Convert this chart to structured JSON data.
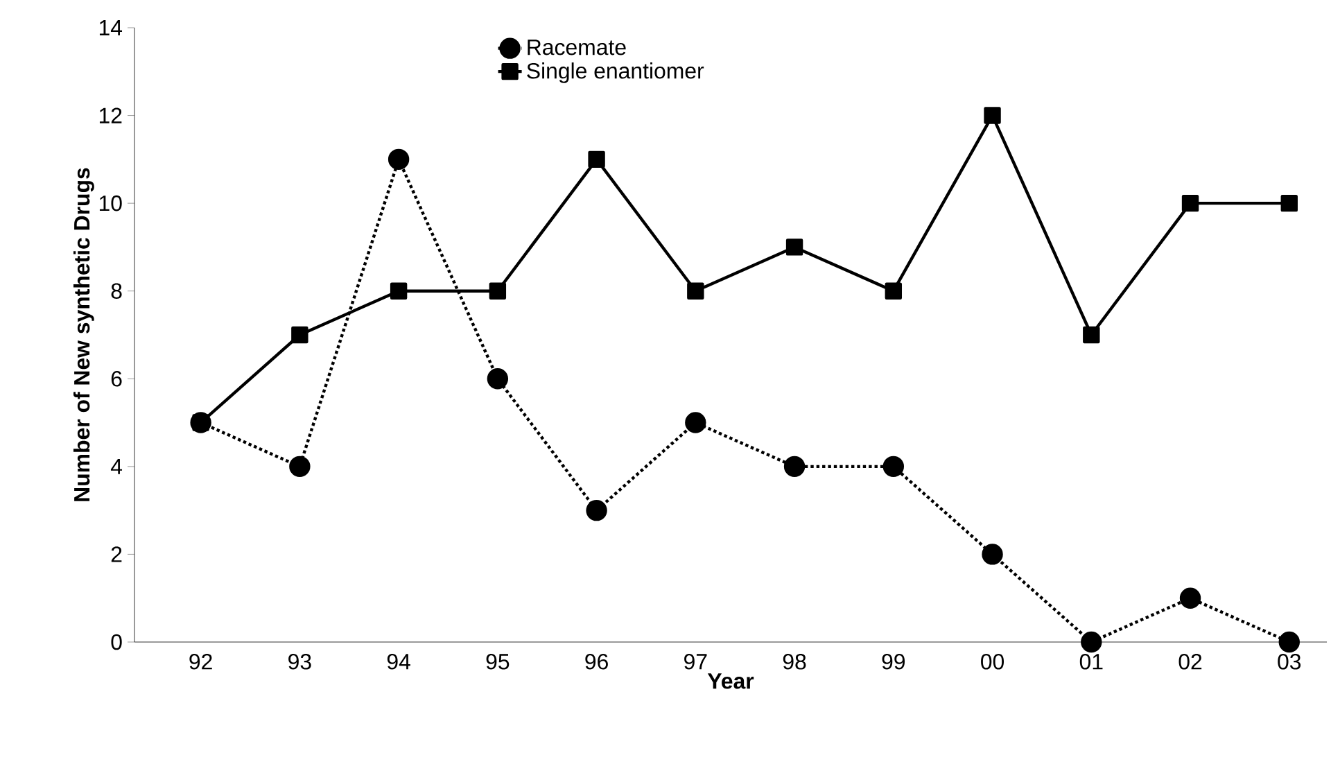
{
  "chart_data": {
    "type": "line",
    "xlabel": "Year",
    "ylabel": "Number of New synthetic Drugs",
    "categories": [
      "92",
      "93",
      "94",
      "95",
      "96",
      "97",
      "98",
      "99",
      "00",
      "01",
      "02",
      "03"
    ],
    "series": [
      {
        "name": "Racemate",
        "color": "#000000",
        "marker": "circle",
        "line_style": "dotted",
        "values": [
          5,
          4,
          11,
          6,
          3,
          5,
          4,
          4,
          2,
          0,
          1,
          0
        ]
      },
      {
        "name": "Single enantiomer",
        "color": "#000000",
        "marker": "square",
        "line_style": "solid",
        "values": [
          5,
          7,
          8,
          8,
          11,
          8,
          9,
          8,
          12,
          7,
          10,
          10
        ]
      }
    ],
    "ylim": [
      0,
      14
    ],
    "yticks": [
      0,
      2,
      4,
      6,
      8,
      10,
      12,
      14
    ],
    "grid": false,
    "legend": "top"
  }
}
